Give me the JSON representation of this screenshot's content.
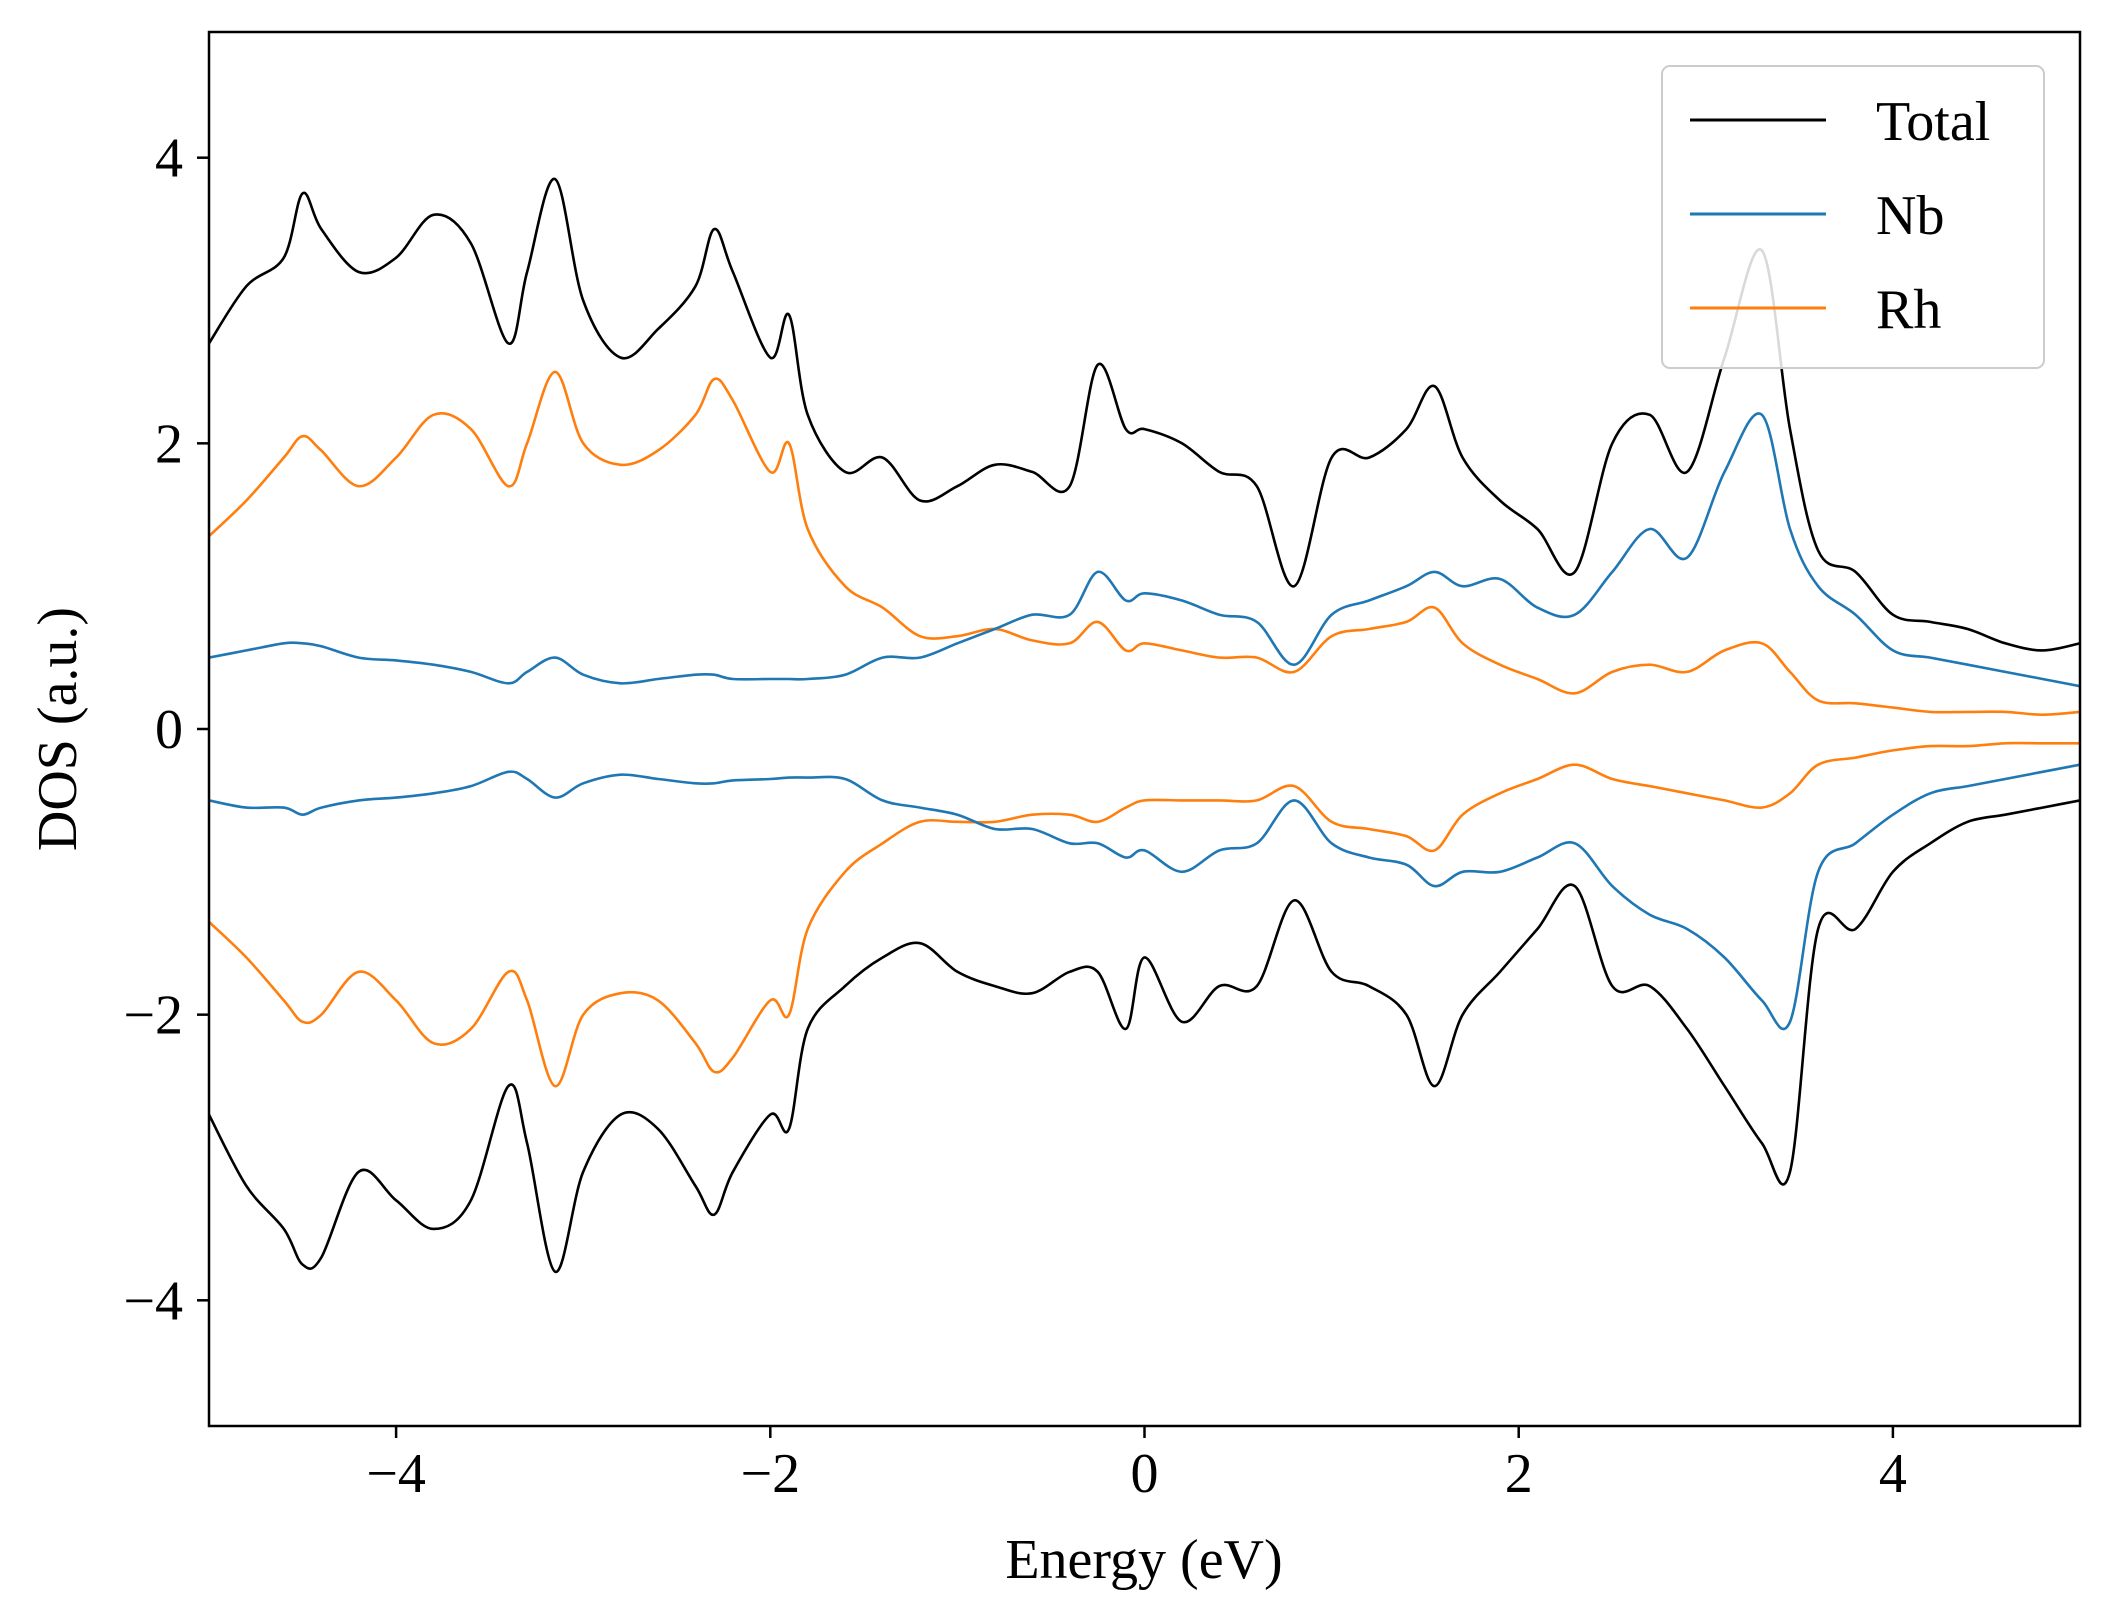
{
  "chart_data": {
    "type": "line",
    "xlabel": "Energy (eV)",
    "ylabel": "DOS (a.u.)",
    "xlim": [
      -5,
      5
    ],
    "ylim": [
      -4.88,
      4.88
    ],
    "xticks": [
      -4,
      -2,
      0,
      2,
      4
    ],
    "yticks": [
      -4,
      -2,
      0,
      2,
      4
    ],
    "xtick_labels": [
      "−4",
      "−2",
      "0",
      "2",
      "4"
    ],
    "ytick_labels": [
      "−4",
      "−2",
      "0",
      "2",
      "4"
    ],
    "grid": false,
    "legend_position": "upper-right",
    "x": [
      -5.0,
      -4.8,
      -4.6,
      -4.5,
      -4.4,
      -4.2,
      -4.0,
      -3.8,
      -3.6,
      -3.4,
      -3.3,
      -3.15,
      -3.0,
      -2.8,
      -2.6,
      -2.4,
      -2.3,
      -2.2,
      -2.0,
      -1.9,
      -1.8,
      -1.6,
      -1.4,
      -1.2,
      -1.0,
      -0.8,
      -0.6,
      -0.4,
      -0.25,
      -0.1,
      0.0,
      0.2,
      0.4,
      0.6,
      0.8,
      1.0,
      1.2,
      1.4,
      1.55,
      1.7,
      1.9,
      2.1,
      2.3,
      2.5,
      2.7,
      2.9,
      3.1,
      3.3,
      3.45,
      3.6,
      3.8,
      4.0,
      4.2,
      4.4,
      4.6,
      4.8,
      5.0
    ],
    "series": [
      {
        "name": "Total",
        "color": "#000000",
        "up": [
          2.7,
          3.1,
          3.3,
          3.75,
          3.5,
          3.2,
          3.3,
          3.6,
          3.4,
          2.7,
          3.2,
          3.85,
          3.0,
          2.6,
          2.8,
          3.1,
          3.5,
          3.2,
          2.6,
          2.9,
          2.2,
          1.8,
          1.9,
          1.6,
          1.7,
          1.85,
          1.8,
          1.7,
          2.55,
          2.1,
          2.1,
          2.0,
          1.8,
          1.7,
          1.0,
          1.9,
          1.9,
          2.1,
          2.4,
          1.9,
          1.6,
          1.4,
          1.1,
          2.0,
          2.2,
          1.8,
          2.6,
          3.35,
          2.1,
          1.25,
          1.1,
          0.8,
          0.75,
          0.7,
          0.6,
          0.55,
          0.6
        ],
        "down": [
          -2.7,
          -3.2,
          -3.5,
          -3.75,
          -3.7,
          -3.1,
          -3.3,
          -3.5,
          -3.3,
          -2.5,
          -2.9,
          -3.8,
          -3.1,
          -2.7,
          -2.8,
          -3.2,
          -3.4,
          -3.1,
          -2.7,
          -2.8,
          -2.1,
          -1.8,
          -1.6,
          -1.5,
          -1.7,
          -1.8,
          -1.85,
          -1.7,
          -1.7,
          -2.1,
          -1.6,
          -2.05,
          -1.8,
          -1.8,
          -1.2,
          -1.7,
          -1.8,
          -2.0,
          -2.5,
          -2.0,
          -1.7,
          -1.4,
          -1.1,
          -1.8,
          -1.8,
          -2.1,
          -2.5,
          -2.9,
          -3.1,
          -1.4,
          -1.4,
          -1.0,
          -0.8,
          -0.65,
          -0.6,
          -0.55,
          -0.5
        ]
      },
      {
        "name": "Nb",
        "color": "#1f77b4",
        "up": [
          0.5,
          0.55,
          0.6,
          0.6,
          0.58,
          0.5,
          0.48,
          0.45,
          0.4,
          0.32,
          0.4,
          0.5,
          0.38,
          0.32,
          0.35,
          0.38,
          0.38,
          0.35,
          0.35,
          0.35,
          0.35,
          0.38,
          0.5,
          0.5,
          0.6,
          0.7,
          0.8,
          0.8,
          1.1,
          0.9,
          0.95,
          0.9,
          0.8,
          0.75,
          0.45,
          0.8,
          0.9,
          1.0,
          1.1,
          1.0,
          1.05,
          0.85,
          0.8,
          1.1,
          1.4,
          1.2,
          1.8,
          2.2,
          1.4,
          1.0,
          0.8,
          0.55,
          0.5,
          0.45,
          0.4,
          0.35,
          0.3
        ],
        "down": [
          -0.5,
          -0.55,
          -0.55,
          -0.6,
          -0.55,
          -0.5,
          -0.48,
          -0.45,
          -0.4,
          -0.3,
          -0.35,
          -0.48,
          -0.38,
          -0.32,
          -0.35,
          -0.38,
          -0.38,
          -0.36,
          -0.35,
          -0.34,
          -0.34,
          -0.35,
          -0.5,
          -0.55,
          -0.6,
          -0.7,
          -0.7,
          -0.8,
          -0.8,
          -0.9,
          -0.85,
          -1.0,
          -0.85,
          -0.8,
          -0.5,
          -0.8,
          -0.9,
          -0.95,
          -1.1,
          -1.0,
          -1.0,
          -0.9,
          -0.8,
          -1.1,
          -1.3,
          -1.4,
          -1.6,
          -1.9,
          -2.05,
          -1.0,
          -0.8,
          -0.6,
          -0.45,
          -0.4,
          -0.35,
          -0.3,
          -0.25
        ]
      },
      {
        "name": "Rh",
        "color": "#ff7f0e",
        "up": [
          1.35,
          1.6,
          1.9,
          2.05,
          1.95,
          1.7,
          1.9,
          2.2,
          2.1,
          1.7,
          2.0,
          2.5,
          2.0,
          1.85,
          1.95,
          2.2,
          2.45,
          2.3,
          1.8,
          2.0,
          1.4,
          1.0,
          0.85,
          0.65,
          0.65,
          0.7,
          0.62,
          0.6,
          0.75,
          0.55,
          0.6,
          0.55,
          0.5,
          0.5,
          0.4,
          0.65,
          0.7,
          0.75,
          0.85,
          0.6,
          0.45,
          0.35,
          0.25,
          0.4,
          0.45,
          0.4,
          0.55,
          0.6,
          0.4,
          0.2,
          0.18,
          0.15,
          0.12,
          0.12,
          0.12,
          0.1,
          0.12
        ],
        "down": [
          -1.35,
          -1.6,
          -1.9,
          -2.05,
          -2.0,
          -1.7,
          -1.9,
          -2.2,
          -2.1,
          -1.7,
          -1.9,
          -2.5,
          -2.0,
          -1.85,
          -1.9,
          -2.2,
          -2.4,
          -2.3,
          -1.9,
          -2.0,
          -1.4,
          -1.0,
          -0.8,
          -0.65,
          -0.65,
          -0.65,
          -0.6,
          -0.6,
          -0.65,
          -0.55,
          -0.5,
          -0.5,
          -0.5,
          -0.5,
          -0.4,
          -0.65,
          -0.7,
          -0.75,
          -0.85,
          -0.6,
          -0.45,
          -0.35,
          -0.25,
          -0.35,
          -0.4,
          -0.45,
          -0.5,
          -0.55,
          -0.45,
          -0.25,
          -0.2,
          -0.15,
          -0.12,
          -0.12,
          -0.1,
          -0.1,
          -0.1
        ]
      }
    ]
  }
}
